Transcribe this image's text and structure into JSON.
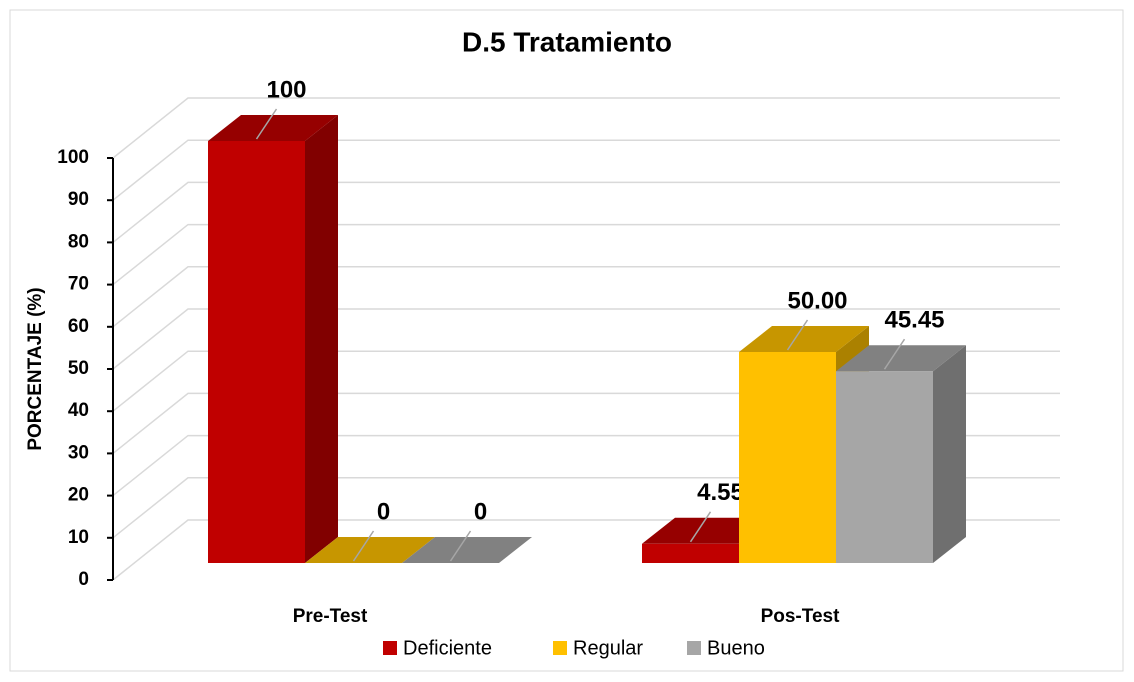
{
  "chart_data": {
    "type": "bar3d",
    "title": "D.5 Tratamiento",
    "y_label": "PORCENTAJE (%)",
    "categories": [
      "Pre-Test",
      "Pos-Test"
    ],
    "series": [
      {
        "name": "Deficiente",
        "color": "#c00000",
        "values": [
          100,
          4.55
        ],
        "value_labels": [
          "100",
          "4.55"
        ]
      },
      {
        "name": "Regular",
        "color": "#ffc000",
        "values": [
          0,
          50.0
        ],
        "value_labels": [
          "0",
          "50.00"
        ]
      },
      {
        "name": "Bueno",
        "color": "#a6a6a6",
        "values": [
          0,
          45.45
        ],
        "value_labels": [
          "0",
          "45.45"
        ]
      }
    ],
    "ylim": [
      0,
      100
    ],
    "yticks": [
      0,
      10,
      20,
      30,
      40,
      50,
      60,
      70,
      80,
      90,
      100
    ],
    "grid": true,
    "legend": "bottom"
  }
}
